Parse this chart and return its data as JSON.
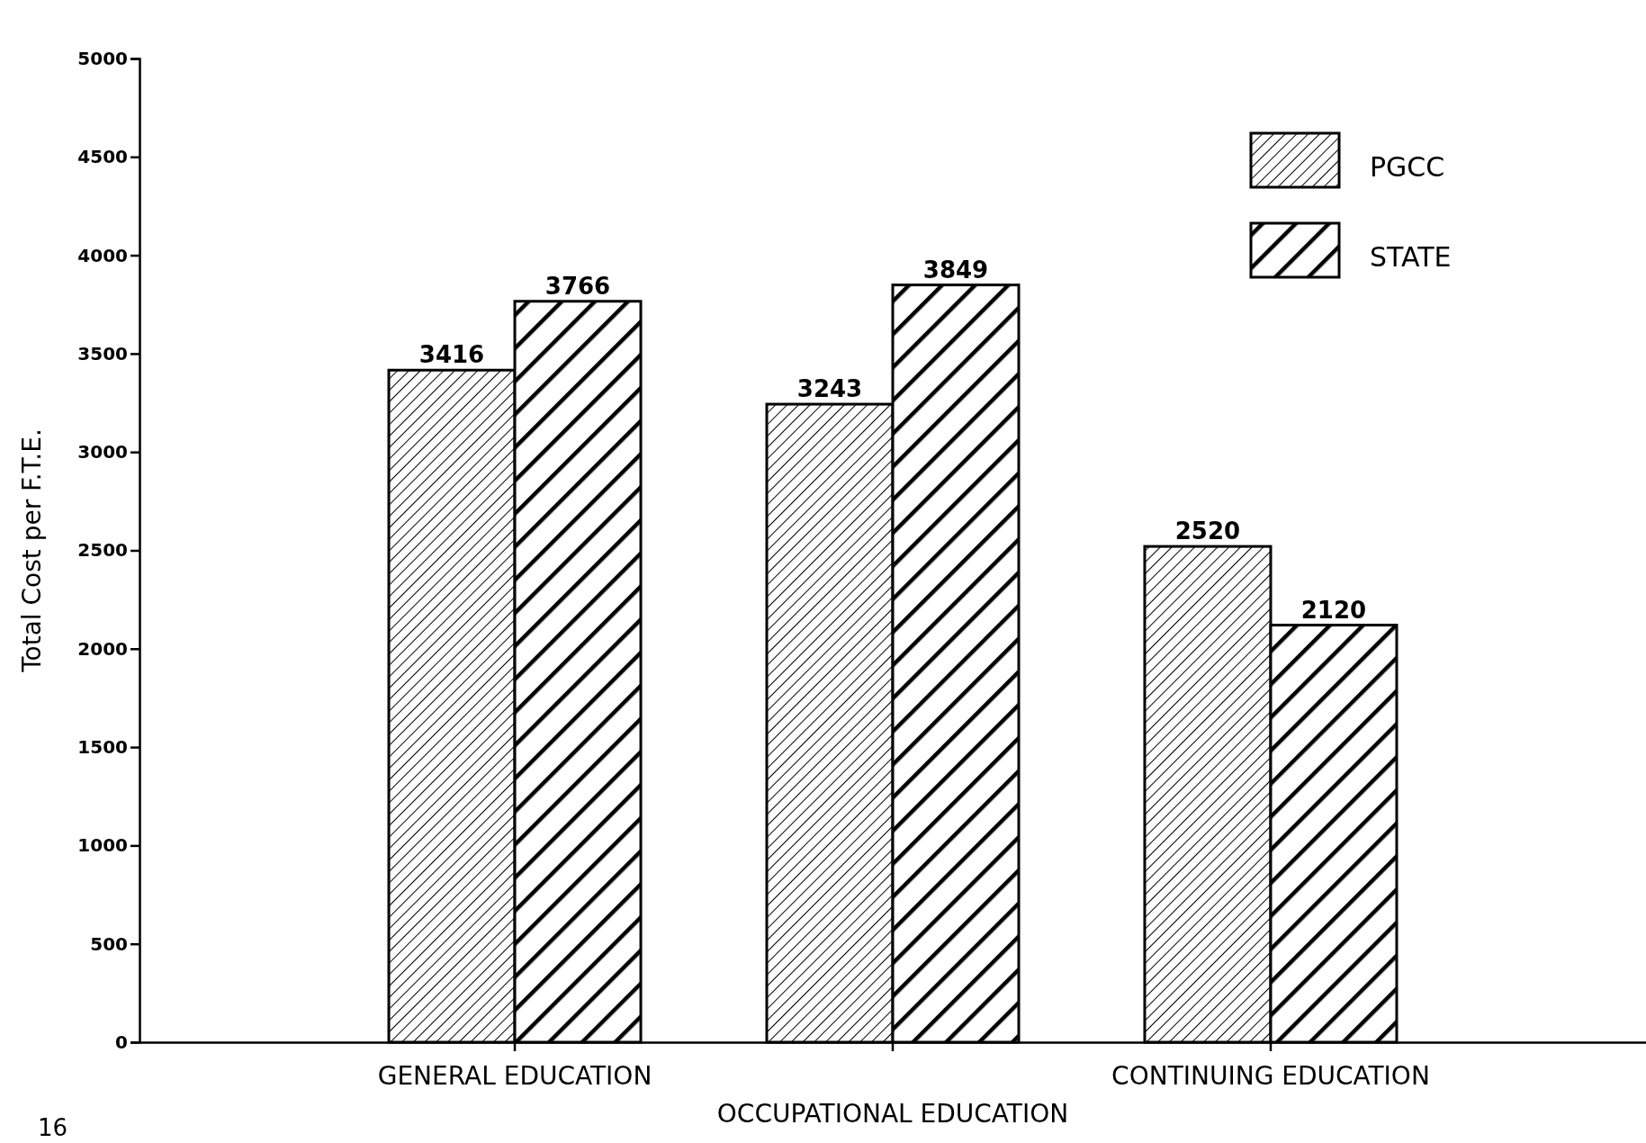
{
  "chart_data": {
    "type": "bar",
    "ylabel": "Total Cost per F.T.E.",
    "categories": [
      "GENERAL  EDUCATION",
      "OCCUPATIONAL  EDUCATION",
      "CONTINUING  EDUCATION"
    ],
    "series": [
      {
        "name": "PGCC",
        "color": "#000000",
        "values": [
          3416,
          3243,
          2520
        ]
      },
      {
        "name": "STATE",
        "color": "#000000",
        "values": [
          3766,
          3849,
          2120
        ]
      }
    ],
    "ylim": [
      0,
      5000
    ],
    "yticks": [
      0,
      500,
      1000,
      1500,
      2000,
      2500,
      3000,
      3500,
      4000,
      4500,
      5000
    ],
    "data_labels": true,
    "legend": "top right",
    "annotations": [
      "16"
    ]
  }
}
